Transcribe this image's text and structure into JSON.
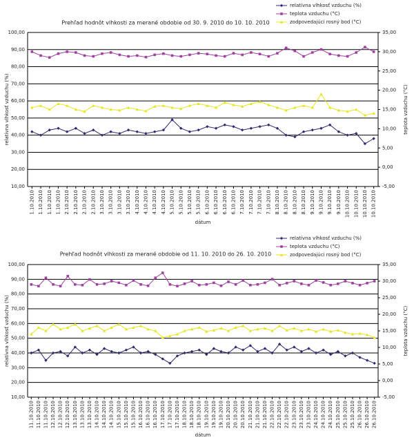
{
  "chart_data": [
    {
      "type": "line",
      "title": "Prehľad hodnôt vlhkosti za merané obdobie od 30. 9. 2010 do 10. 10. 2010",
      "x_label": "dátum",
      "y_label": "relatívna vlhkosť vzduchu (%)",
      "y2_label": "teplota vzduchu (°C)",
      "categories": [
        "1.10.2010",
        "1.10.2010",
        "1.10.2010",
        "1.10.2010",
        "2.10.2010",
        "2.10.2010",
        "2.10.2010",
        "2.10.2010",
        "3.10.2010",
        "3.10.2010",
        "3.10.2010",
        "3.10.2010",
        "4.10.2010",
        "4.10.2010",
        "4.10.2010",
        "4.10.2010",
        "5.10.2010",
        "5.10.2010",
        "5.10.2010",
        "5.10.2010",
        "6.10.2010",
        "6.10.2010",
        "6.10.2010",
        "6.10.2010",
        "7.10.2010",
        "7.10.2010",
        "7.10.2010",
        "7.10.2010",
        "8.10.2010",
        "8.10.2010",
        "8.10.2010",
        "8.10.2010",
        "9.10.2010",
        "9.10.2010",
        "9.10.2010",
        "9.10.2010",
        "10.10.2010",
        "10.10.2010",
        "10.10.2010",
        "10.10.2010"
      ],
      "series": [
        {
          "name": "relatívna vlhkosť vzduchu (%)",
          "color": "#2e2a6e",
          "marker": "diamond",
          "axis": "y",
          "values": [
            42,
            40,
            43,
            44,
            42,
            44,
            41,
            43,
            40,
            42,
            41,
            43,
            42,
            41,
            42,
            43,
            49,
            44,
            42,
            43,
            45,
            44,
            46,
            45,
            43,
            44,
            45,
            46,
            44,
            40,
            39,
            42,
            43,
            44,
            46,
            42,
            40,
            41,
            35,
            38
          ]
        },
        {
          "name": "teplota vzduchu (°C)",
          "color": "#a040a0",
          "marker": "square",
          "axis": "y2",
          "values": [
            30,
            29,
            28.5,
            29.5,
            30,
            29.8,
            29,
            28.8,
            29.5,
            29.8,
            29.2,
            28.8,
            29,
            28.6,
            29.2,
            29.5,
            29,
            28.8,
            29.2,
            29.6,
            29.4,
            29,
            28.8,
            29.6,
            29.2,
            29.8,
            29.4,
            28.8,
            29.6,
            31,
            30.2,
            28.8,
            29.8,
            30.6,
            29.4,
            29,
            28.8,
            29.8,
            31.2,
            30
          ]
        },
        {
          "name": "zodpovedajúci rosný bod (°C)",
          "color": "#e6e61e",
          "marker": "triangle",
          "axis": "y2",
          "values": [
            15.5,
            16,
            15,
            16.5,
            16,
            15,
            14.5,
            16,
            15.5,
            15,
            14.8,
            15.5,
            15,
            14.6,
            15.8,
            16,
            15.5,
            15.2,
            16,
            16.5,
            16,
            15.5,
            16.8,
            16.2,
            15.8,
            16.5,
            17,
            16.2,
            15.5,
            14.8,
            15.5,
            16,
            15.5,
            19,
            15.5,
            14.8,
            14.5,
            15,
            13.5,
            14
          ]
        }
      ],
      "ylim": [
        10,
        100
      ],
      "yticks": [
        {
          "value": 10,
          "label": "10,00"
        },
        {
          "value": 20,
          "label": "20,00"
        },
        {
          "value": 30,
          "label": "30,00"
        },
        {
          "value": 40,
          "label": "40,00"
        },
        {
          "value": 50,
          "label": "50,00"
        },
        {
          "value": 60,
          "label": "60,00"
        },
        {
          "value": 70,
          "label": "70,00"
        },
        {
          "value": 80,
          "label": "80,00"
        },
        {
          "value": 90,
          "label": "90,00"
        },
        {
          "value": 100,
          "label": "100,00"
        }
      ],
      "y2lim": [
        -5,
        35
      ],
      "y2ticks": [
        {
          "value": -5,
          "label": "-5,00"
        },
        {
          "value": 0,
          "label": "0,00"
        },
        {
          "value": 5,
          "label": "5,00"
        },
        {
          "value": 10,
          "label": "10,00"
        },
        {
          "value": 15,
          "label": "15,00"
        },
        {
          "value": 20,
          "label": "20,00"
        },
        {
          "value": 25,
          "label": "25,00"
        },
        {
          "value": 30,
          "label": "30,00"
        },
        {
          "value": 35,
          "label": "35,00"
        }
      ],
      "grid": true,
      "legend": "top right"
    },
    {
      "type": "line",
      "title": "Prehľad hodnôt vlhkosti za merané obdobie od 11. 10. 2010 do 26. 10. 2010",
      "x_label": "dátum",
      "y_label": "relatívna vlhkosť vzduchu (%)",
      "y2_label": "teplota vzduchu (°C)",
      "categories": [
        "11.10.2010",
        "11.10.2010",
        "11.10.2010",
        "12.10.2010",
        "12.10.2010",
        "12.10.2010",
        "13.10.2010",
        "13.10.2010",
        "13.10.2010",
        "14.10.2010",
        "14.10.2010",
        "14.10.2010",
        "15.10.2010",
        "15.10.2010",
        "15.10.2010",
        "16.10.2010",
        "16.10.2010",
        "16.10.2010",
        "17.10.2010",
        "17.10.2010",
        "17.10.2010",
        "18.10.2010",
        "18.10.2010",
        "18.10.2010",
        "19.10.2010",
        "19.10.2010",
        "19.10.2010",
        "20.10.2010",
        "20.10.2010",
        "20.10.2010",
        "21.10.2010",
        "21.10.2010",
        "21.10.2010",
        "22.10.2010",
        "22.10.2010",
        "22.10.2010",
        "23.10.2010",
        "23.10.2010",
        "23.10.2010",
        "24.10.2010",
        "24.10.2010",
        "24.10.2010",
        "25.10.2010",
        "25.10.2010",
        "25.10.2010",
        "26.10.2010",
        "26.10.2010",
        "26.10.2010"
      ],
      "series": [
        {
          "name": "relatívna vlhkosť vzduchu (%)",
          "color": "#2e2a6e",
          "marker": "diamond",
          "axis": "y",
          "values": [
            40,
            42,
            35,
            40,
            41,
            38,
            44,
            40,
            42,
            39,
            43,
            41,
            40,
            42,
            44,
            40,
            41,
            39,
            36,
            33,
            38,
            40,
            41,
            42,
            39,
            43,
            41,
            40,
            44,
            42,
            45,
            41,
            43,
            40,
            46,
            42,
            44,
            41,
            43,
            40,
            42,
            39,
            41,
            38,
            40,
            37,
            35,
            33
          ]
        },
        {
          "name": "teplota vzduchu (°C)",
          "color": "#a040a0",
          "marker": "square",
          "axis": "y2",
          "values": [
            29,
            28.5,
            31,
            29,
            28.5,
            31.5,
            29,
            28.8,
            30.5,
            29,
            29.2,
            30,
            29.5,
            28.8,
            30.2,
            29,
            28.6,
            31,
            32.5,
            29,
            28.5,
            29.2,
            30,
            28.8,
            29,
            29.5,
            28.6,
            29.8,
            29,
            30.2,
            28.8,
            29,
            29.5,
            30.6,
            28.8,
            29.4,
            30,
            29.2,
            28.8,
            30.2,
            29.6,
            28.8,
            29.2,
            30,
            29.4,
            28.8,
            29.4,
            30
          ]
        },
        {
          "name": "zodpovedajúci rosný bod (°C)",
          "color": "#e6e61e",
          "marker": "triangle",
          "axis": "y2",
          "values": [
            14,
            16,
            15,
            17,
            15.5,
            16,
            17,
            15,
            15.8,
            16.5,
            15,
            16,
            17,
            15.5,
            16,
            16.5,
            15.5,
            15,
            13,
            13.5,
            14,
            15,
            15.5,
            16,
            14.8,
            15.2,
            15.8,
            15,
            16,
            16.5,
            15,
            15.5,
            15.8,
            15,
            16.5,
            15.2,
            15.8,
            15,
            15.5,
            14.8,
            15.5,
            14.8,
            15.2,
            14.5,
            14,
            14.2,
            13.8,
            13
          ]
        }
      ],
      "ylim": [
        10,
        100
      ],
      "yticks": [
        {
          "value": 10,
          "label": "10,00"
        },
        {
          "value": 20,
          "label": "20,00"
        },
        {
          "value": 30,
          "label": "30,00"
        },
        {
          "value": 40,
          "label": "40,00"
        },
        {
          "value": 50,
          "label": "50,00"
        },
        {
          "value": 60,
          "label": "60,00"
        },
        {
          "value": 70,
          "label": "70,00"
        },
        {
          "value": 80,
          "label": "80,00"
        },
        {
          "value": 90,
          "label": "90,00"
        },
        {
          "value": 100,
          "label": "100,00"
        }
      ],
      "y2lim": [
        -5,
        35
      ],
      "y2ticks": [
        {
          "value": -5,
          "label": "-5,00"
        },
        {
          "value": 0,
          "label": "0,00"
        },
        {
          "value": 5,
          "label": "5,00"
        },
        {
          "value": 10,
          "label": "10,00"
        },
        {
          "value": 15,
          "label": "15,00"
        },
        {
          "value": 20,
          "label": "20,00"
        },
        {
          "value": 25,
          "label": "25,00"
        },
        {
          "value": 30,
          "label": "30,00"
        },
        {
          "value": 35,
          "label": "35,00"
        }
      ],
      "grid": true,
      "legend": "top right"
    }
  ]
}
